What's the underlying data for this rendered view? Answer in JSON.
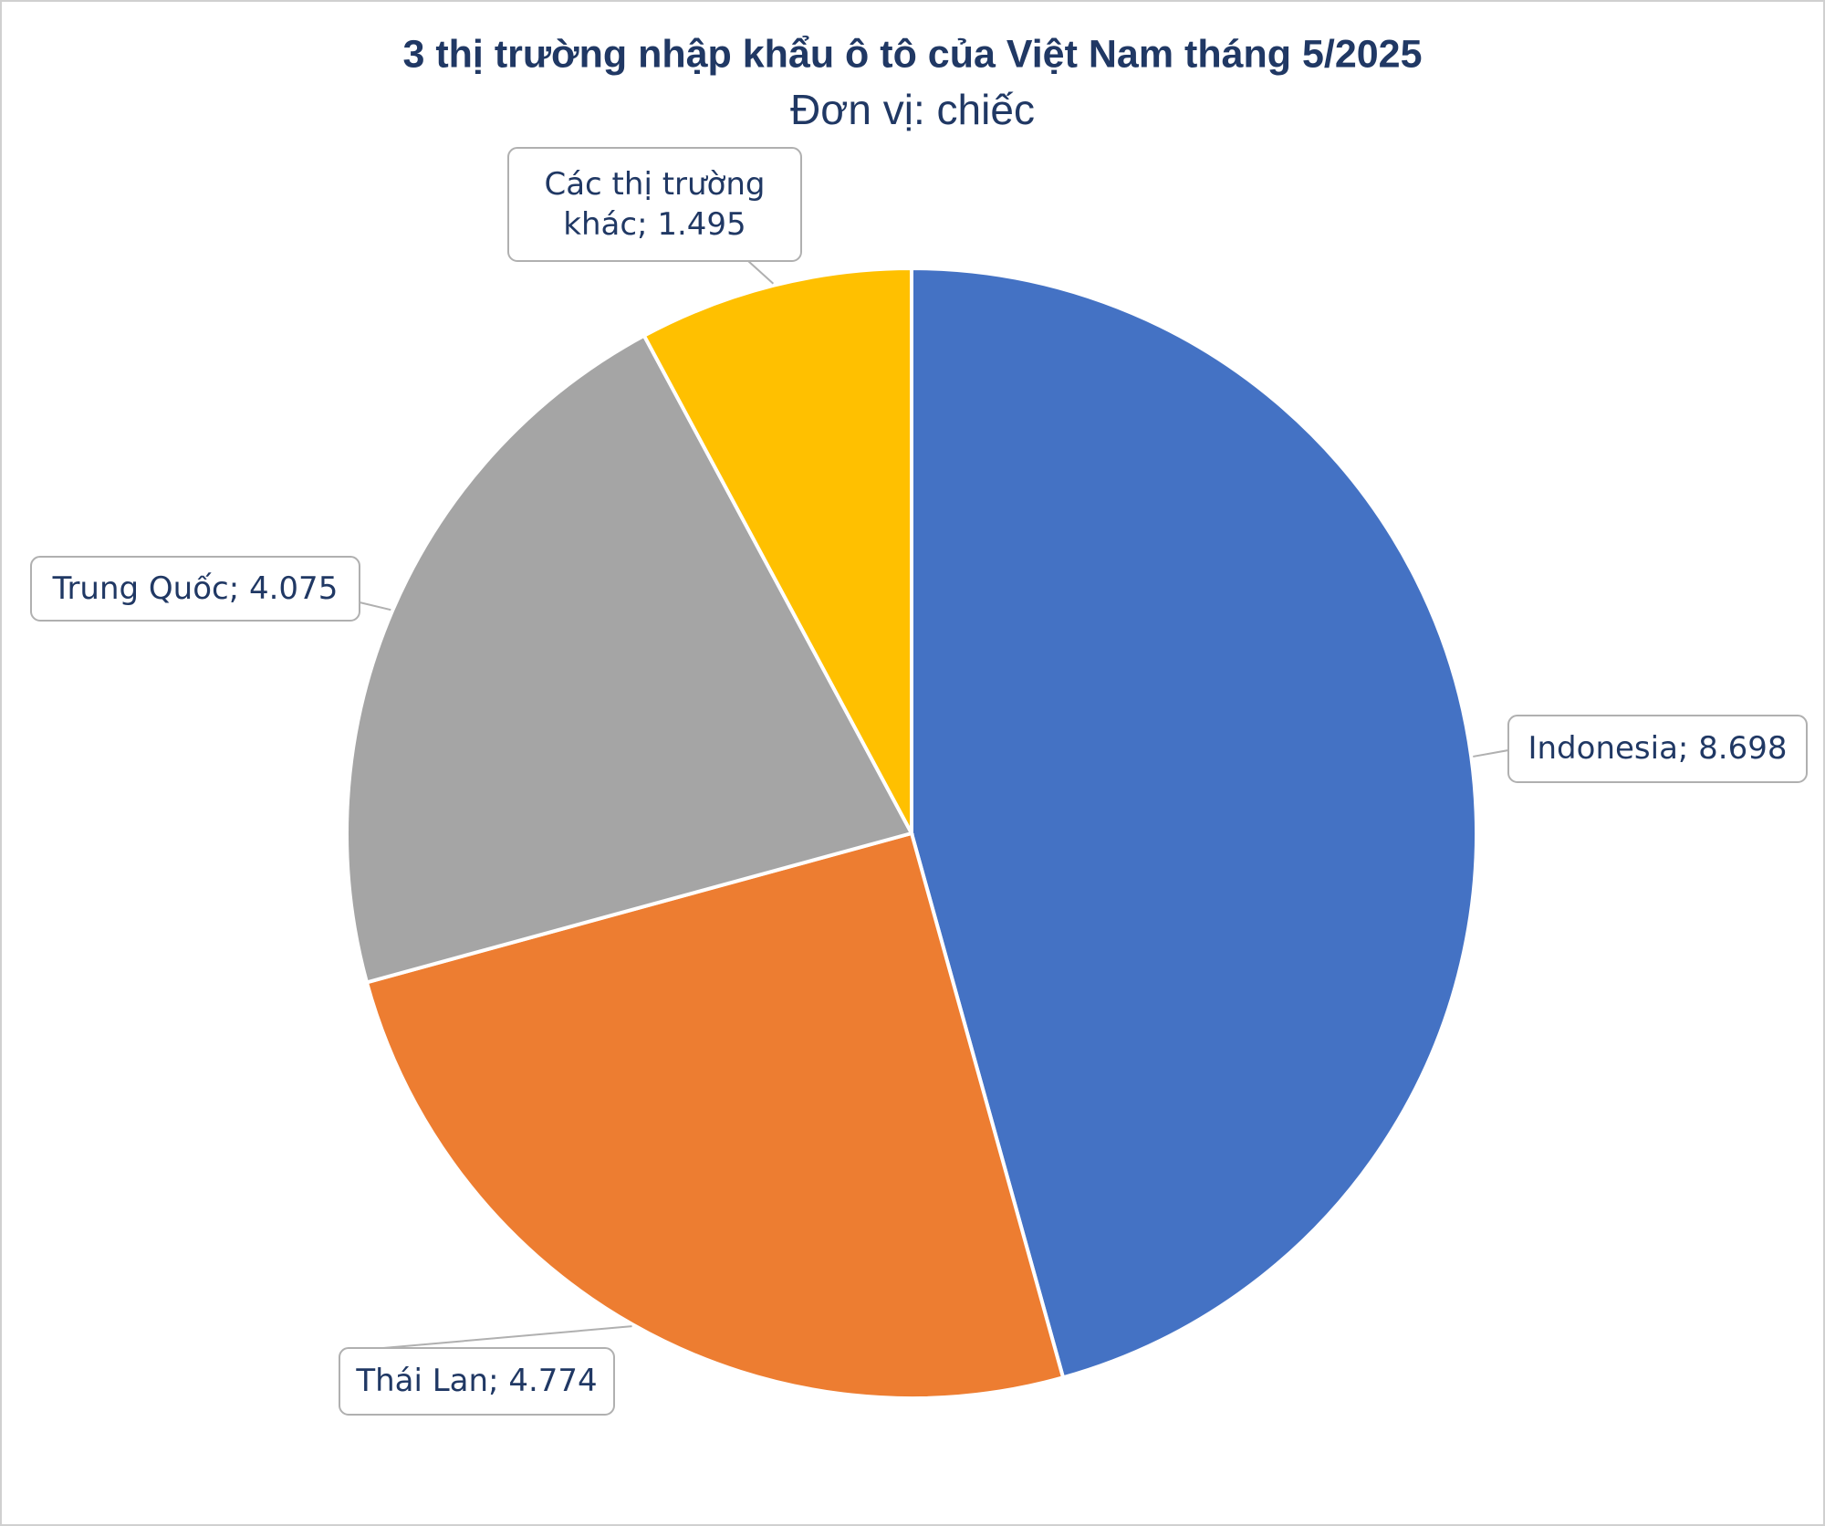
{
  "chart_data": {
    "type": "pie",
    "title": "3 thị trường nhập khẩu ô tô của Việt Nam tháng 5/2025",
    "subtitle": "Đơn vị: chiếc",
    "categories": [
      "Indonesia",
      "Thái Lan",
      "Trung Quốc",
      "Các thị trường khác"
    ],
    "values": [
      8698,
      4774,
      4075,
      1495
    ],
    "value_labels": [
      "8.698",
      "4.774",
      "4.075",
      "1.495"
    ],
    "label_separator": "; ",
    "colors": [
      "#4472c4",
      "#ed7d31",
      "#a5a5a5",
      "#ffc000"
    ]
  }
}
